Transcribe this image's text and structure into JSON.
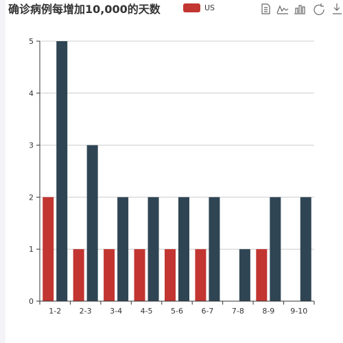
{
  "colors": {
    "series_1": "#c23531",
    "series_2": "#2f4554"
  },
  "toolbox": [
    "data-view-icon",
    "line-chart-icon",
    "bar-chart-icon",
    "restore-icon",
    "save-image-icon"
  ],
  "chart_data": {
    "type": "bar",
    "title": "确诊病例每增加10,000的天数",
    "categories": [
      "1-2",
      "2-3",
      "3-4",
      "4-5",
      "5-6",
      "6-7",
      "7-8",
      "8-9",
      "9-10"
    ],
    "series": [
      {
        "name": "US",
        "color": "#c23531",
        "values": [
          2,
          1,
          1,
          1,
          1,
          1,
          0,
          1,
          0
        ]
      },
      {
        "color": "#2f4554",
        "values": [
          5,
          3,
          2,
          2,
          2,
          2,
          1,
          2,
          2
        ]
      }
    ],
    "ylim": [
      0,
      5
    ],
    "yticks": [
      0,
      1,
      2,
      3,
      4,
      5
    ],
    "legend_position": "top",
    "grid": true
  }
}
